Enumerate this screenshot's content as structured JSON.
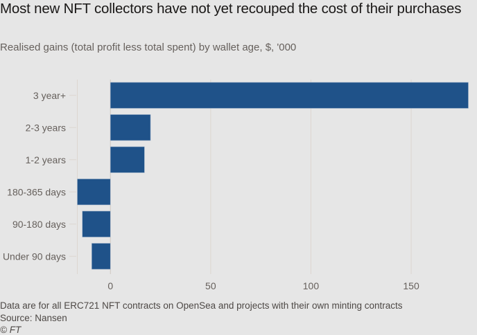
{
  "header": {
    "title": "Most new NFT collectors have not yet recouped the cost of their purchases",
    "subtitle": "Realised gains (total profit less total spent) by wallet age, $, '000"
  },
  "footer": {
    "note": "Data are for all ERC721 NFT contracts on OpenSea and projects with their own minting contracts",
    "source": "Source: Nansen",
    "credit": "© FT"
  },
  "colors": {
    "bar": "#1f5289",
    "grid": "#dcd6d0",
    "tick_text": "#66605c",
    "background": "#e6e6e6"
  },
  "chart_data": {
    "type": "bar",
    "orientation": "horizontal",
    "title": "Most new NFT collectors have not yet recouped the cost of their purchases",
    "subtitle": "Realised gains (total profit less total spent) by wallet age, $, '000",
    "xlabel": "",
    "ylabel": "",
    "categories": [
      "3 year+",
      "2-3 years",
      "1-2 years",
      "180-365 days",
      "90-180 days",
      "Under 90 days"
    ],
    "values": [
      178.5,
      20,
      17,
      -16.5,
      -14,
      -9.3
    ],
    "xlim": [
      -16.5,
      178.5
    ],
    "xticks": [
      0,
      50,
      100,
      150
    ],
    "grid": true,
    "legend": "none"
  }
}
